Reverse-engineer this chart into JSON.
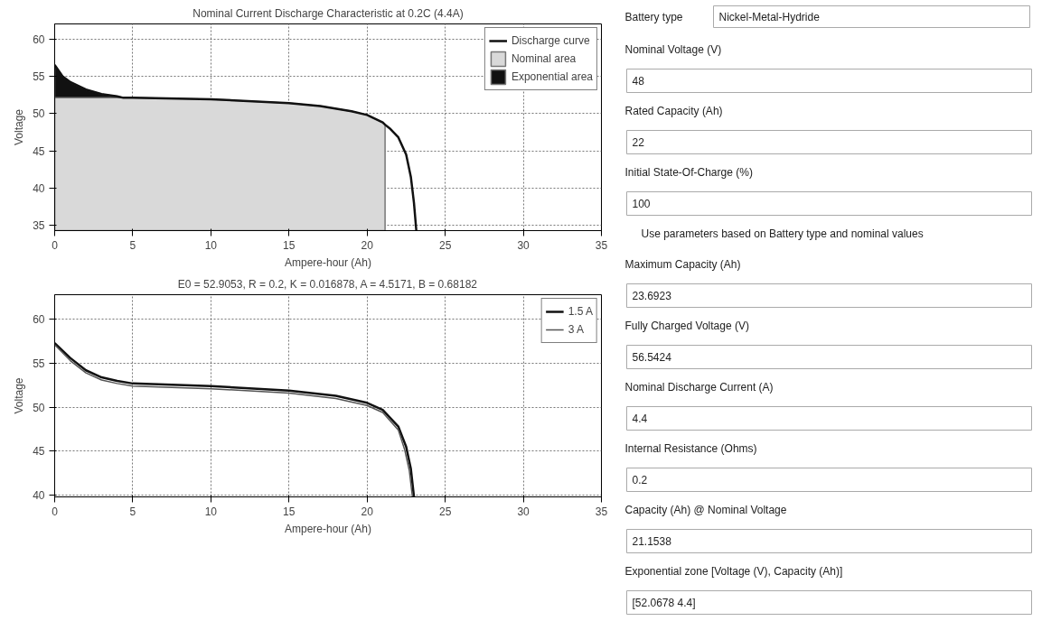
{
  "chart_data": [
    {
      "type": "area",
      "title": "Nominal Current Discharge Characteristic at 0.2C (4.4A)",
      "xlabel": "Ampere-hour (Ah)",
      "ylabel": "Voltage",
      "xlim": [
        0,
        35
      ],
      "ylim": [
        34.3,
        62
      ],
      "xticks": [
        0,
        5,
        10,
        15,
        20,
        25,
        30,
        35
      ],
      "yticks": [
        35,
        40,
        45,
        50,
        55,
        60
      ],
      "grid": true,
      "legend": "top right",
      "series": [
        {
          "name": "Discharge curve",
          "type": "line",
          "color": "#111111",
          "x": [
            0,
            0.5,
            1,
            2,
            3,
            4,
            4.4,
            5,
            10,
            15,
            17,
            19,
            20,
            21,
            21.15,
            21.5,
            22,
            22.5,
            22.8,
            23,
            23.15
          ],
          "values": [
            56.5,
            55,
            54.2,
            53.2,
            52.6,
            52.3,
            52.1,
            52.1,
            51.9,
            51.4,
            51,
            50.3,
            49.8,
            48.8,
            48.5,
            47.9,
            46.8,
            44.5,
            41.5,
            38,
            34.3
          ]
        },
        {
          "name": "Nominal area",
          "type": "area",
          "color": "#d9d9d9",
          "x": [
            0,
            4.4,
            5,
            10,
            15,
            17,
            19,
            20,
            21,
            21.15
          ],
          "values": [
            52.1,
            52.1,
            52.1,
            51.9,
            51.4,
            51,
            50.3,
            49.8,
            48.8,
            48.5
          ]
        },
        {
          "name": "Exponential area",
          "type": "area",
          "color": "#111111",
          "x": [
            0,
            0.5,
            1,
            2,
            3,
            4,
            4.4
          ],
          "values": [
            56.5,
            55,
            54.2,
            53.2,
            52.6,
            52.3,
            52.1
          ]
        }
      ]
    },
    {
      "type": "line",
      "title": "E0 = 52.9053, R = 0.2, K = 0.016878, A = 4.5171, B = 0.68182",
      "xlabel": "Ampere-hour (Ah)",
      "ylabel": "Voltage",
      "xlim": [
        0,
        35
      ],
      "ylim": [
        39.8,
        62.8
      ],
      "xticks": [
        0,
        5,
        10,
        15,
        20,
        25,
        30,
        35
      ],
      "yticks": [
        40,
        45,
        50,
        55,
        60
      ],
      "grid": true,
      "legend": "top right",
      "series": [
        {
          "name": "1.5 A",
          "color": "#111111",
          "x": [
            0,
            1,
            2,
            3,
            4,
            5,
            10,
            15,
            18,
            20,
            21,
            22,
            22.5,
            22.8,
            23
          ],
          "values": [
            57.3,
            55.6,
            54.2,
            53.4,
            53,
            52.7,
            52.4,
            51.9,
            51.3,
            50.5,
            49.7,
            47.8,
            45.5,
            43,
            39.8
          ]
        },
        {
          "name": "3 A",
          "color": "#555555",
          "x": [
            0,
            1,
            2,
            3,
            4,
            5,
            10,
            15,
            18,
            20,
            21,
            22,
            22.4,
            22.7,
            22.9
          ],
          "values": [
            57.1,
            55.3,
            53.9,
            53.1,
            52.7,
            52.4,
            52.1,
            51.6,
            51,
            50.2,
            49.4,
            47.4,
            45.2,
            42.8,
            39.8
          ]
        }
      ]
    },
    {
      "type": "other",
      "annotations": [
        "Battery type",
        "Nickel-Metal-Hydride",
        "Nominal Voltage (V)",
        "48",
        "Rated Capacity (Ah)",
        "22",
        "Initial State-Of-Charge (%)",
        "100",
        "Use parameters based on Battery type and nominal values",
        "Maximum Capacity (Ah)",
        "23.6923",
        "Fully Charged Voltage (V)",
        "56.5424",
        "Nominal Discharge Current (A)",
        "4.4",
        "Internal Resistance (Ohms)",
        "0.2",
        "Capacity (Ah) @ Nominal Voltage",
        "21.1538",
        "Exponential zone [Voltage (V), Capacity (Ah)]",
        "[52.0678        4.4]"
      ]
    }
  ]
}
